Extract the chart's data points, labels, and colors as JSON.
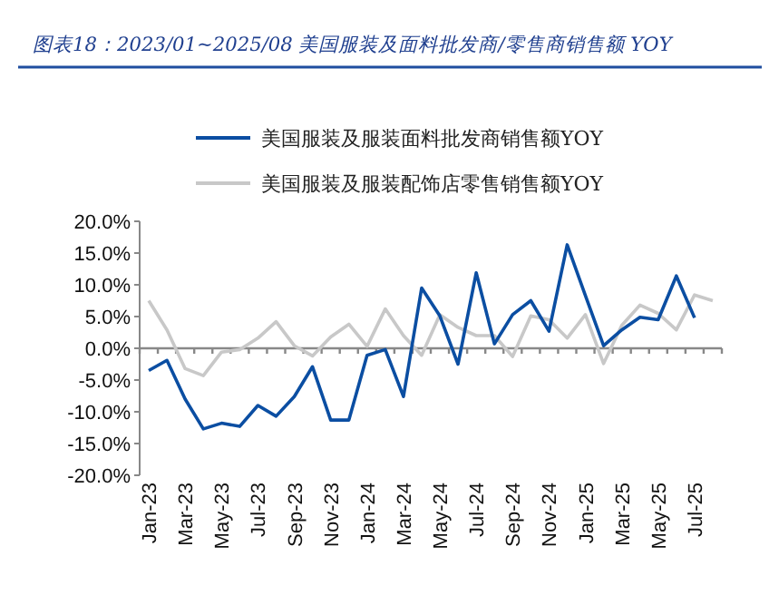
{
  "chart_data": {
    "type": "line",
    "title": "图表18：2023/01~2025/08 美国服装及面料批发商/零售商销售额 YOY",
    "categories": [
      "Jan-23",
      null,
      "Mar-23",
      null,
      "May-23",
      null,
      "Jul-23",
      null,
      "Sep-23",
      null,
      "Nov-23",
      null,
      "Jan-24",
      null,
      "Mar-24",
      null,
      "May-24",
      null,
      "Jul-24",
      null,
      "Sep-24",
      null,
      "Nov-24",
      null,
      "Jan-25",
      null,
      "Mar-25",
      null,
      "May-25",
      null,
      "Jul-25",
      null
    ],
    "series": [
      {
        "name": "美国服装及服装面料批发商销售额YOY",
        "color": "#0b4ea2",
        "values": [
          -3.5,
          -1.9,
          -8,
          -12.7,
          -11.8,
          -12.3,
          -9,
          -10.7,
          -7.6,
          -2.9,
          -11.3,
          -11.3,
          -1.1,
          -0.2,
          -7.6,
          9.5,
          5.1,
          -2.5,
          11.9,
          0.7,
          5.3,
          7.5,
          2.7,
          16.3,
          8.3,
          0.4,
          2.9,
          4.9,
          4.5,
          11.4,
          4.8,
          null
        ]
      },
      {
        "name": "美国服装及服装配饰店零售销售额YOY",
        "color": "#c8c8c8",
        "values": [
          7.5,
          2.9,
          -3.2,
          -4.3,
          -0.6,
          -0.2,
          1.6,
          4.2,
          0.4,
          -1.2,
          1.8,
          3.8,
          0.3,
          6.2,
          2.0,
          -1.1,
          5.3,
          3.3,
          2.0,
          2.0,
          -1.3,
          5.1,
          4.5,
          1.6,
          5.3,
          -2.4,
          3.6,
          6.8,
          5.5,
          2.9,
          8.4,
          7.5
        ]
      }
    ],
    "ylim": [
      -20,
      20
    ],
    "yticks": [
      {
        "value": -20,
        "label": "-20.0%"
      },
      {
        "value": -15,
        "label": "-15.0%"
      },
      {
        "value": -10,
        "label": "-10.0%"
      },
      {
        "value": -5,
        "label": "-5.0%"
      },
      {
        "value": 0,
        "label": "0.0%"
      },
      {
        "value": 5,
        "label": "5.0%"
      },
      {
        "value": 10,
        "label": "10.0%"
      },
      {
        "value": 15,
        "label": "15.0%"
      },
      {
        "value": 20,
        "label": "20.0%"
      }
    ],
    "ref_lines": [
      {
        "axis": "y",
        "value": 0,
        "color": "#888888"
      }
    ],
    "legend": "top",
    "grid": false,
    "marker": "none",
    "line_style": "solid"
  }
}
